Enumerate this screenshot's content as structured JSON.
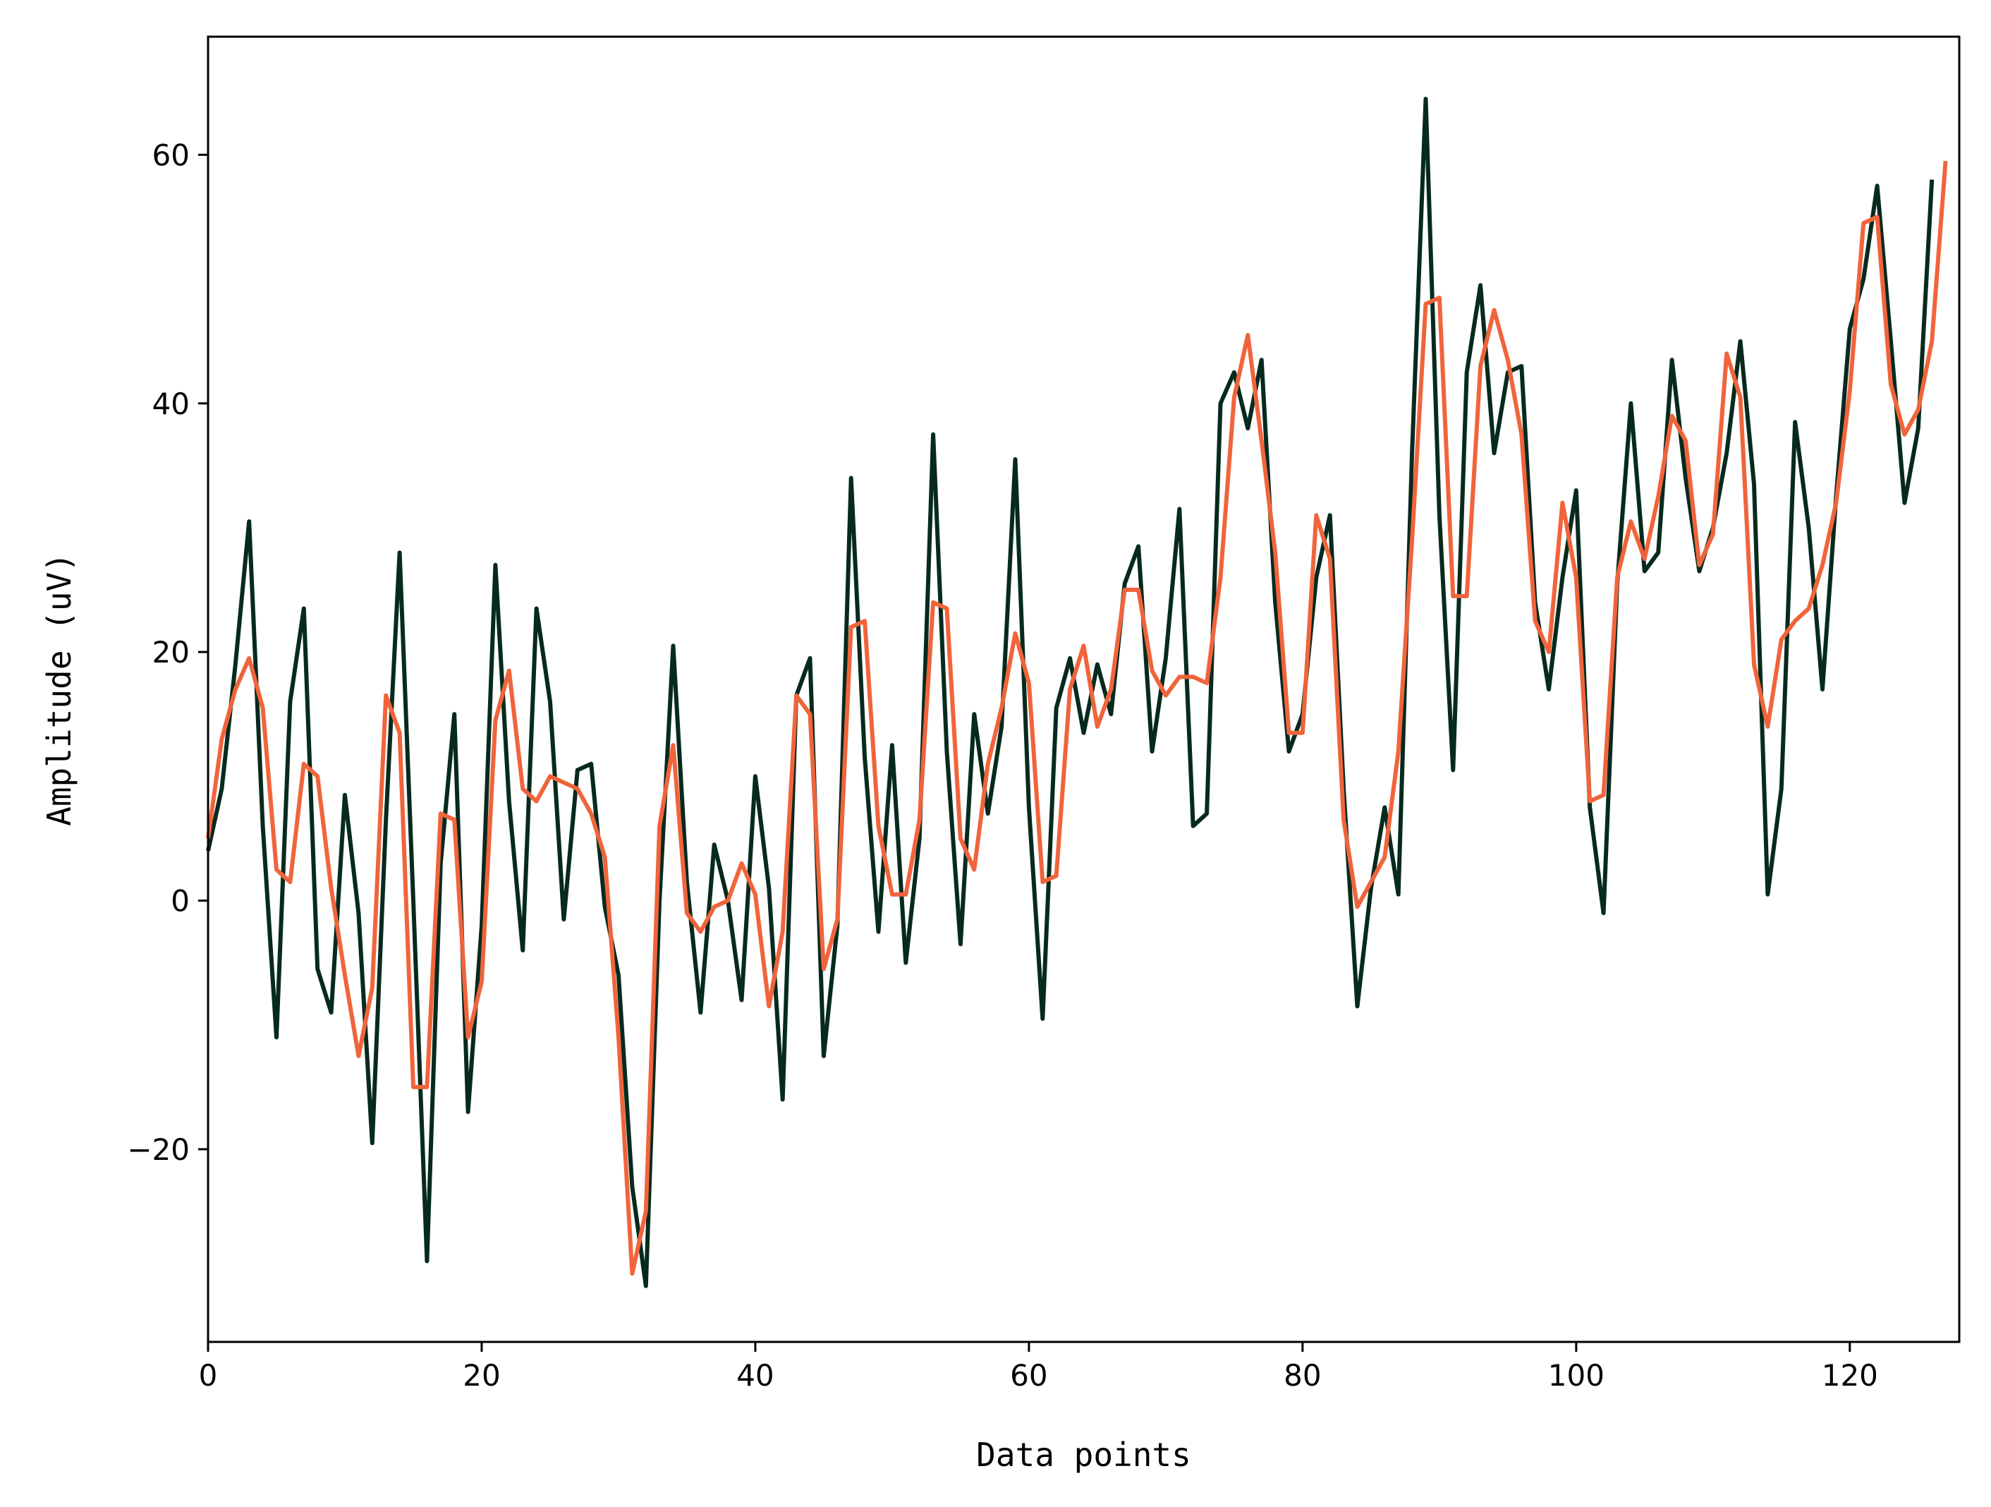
{
  "chart_data": {
    "type": "line",
    "xlabel": "Data points",
    "ylabel": "Amplitude (uV)",
    "xlim": [
      0,
      128
    ],
    "ylim": [
      -35.5,
      69.5
    ],
    "grid": false,
    "x_ticks": [
      0,
      20,
      40,
      60,
      80,
      100,
      120
    ],
    "y_ticks": [
      -20,
      0,
      20,
      40,
      60
    ],
    "x_tick_labels": [
      "0",
      "20",
      "40",
      "60",
      "80",
      "100",
      "120"
    ],
    "y_tick_labels": [
      "−20",
      "0",
      "20",
      "40",
      "60"
    ],
    "colors": [
      "#062a1e",
      "#f0643c"
    ],
    "series": [
      {
        "values": [
          4,
          9,
          19,
          30.5,
          6,
          -11,
          16,
          23.5,
          -5.5,
          -9,
          8.5,
          -1,
          -19.5,
          6.5,
          28,
          0,
          -29,
          3,
          15,
          -17,
          -2,
          27,
          8,
          -4,
          23.5,
          16,
          -1.5,
          10.5,
          11,
          -0.5,
          -6,
          -23,
          -31,
          0,
          20.5,
          1.5,
          -9,
          4.5,
          0,
          -8,
          10,
          1,
          -16,
          16.5,
          19.5,
          -12.5,
          -2,
          34,
          11.5,
          -2.5,
          12.5,
          -5,
          5,
          37.5,
          12,
          -3.5,
          15,
          7,
          14,
          35.5,
          7.5,
          -9.5,
          15.5,
          19.5,
          13.5,
          19,
          15,
          25.5,
          28.5,
          12,
          19.5,
          31.5,
          6,
          7,
          40,
          42.5,
          38,
          43.5,
          24,
          12,
          15,
          26,
          31,
          9,
          -8.5,
          1,
          7.5,
          0.5,
          36,
          64.5,
          31,
          10.5,
          42.5,
          49.5,
          36,
          42.5,
          43,
          24,
          17,
          26,
          33,
          7.5,
          -1,
          25.5,
          40,
          26.5,
          28,
          43.5,
          34,
          26.5,
          30,
          36,
          45,
          33.5,
          0.5,
          9,
          38.5,
          30,
          17,
          32.5,
          46,
          50,
          57.5,
          45,
          32,
          38,
          58
        ]
      },
      {
        "values": [
          5,
          13,
          17,
          19.5,
          15.5,
          2.5,
          1.5,
          11,
          10,
          1,
          -6,
          -12.5,
          -7,
          16.5,
          13.5,
          -15,
          -15,
          7,
          6.5,
          -11,
          -6.5,
          14.5,
          18.5,
          9,
          8,
          10,
          9.5,
          9,
          7,
          3.5,
          -11,
          -30,
          -25,
          6,
          12.5,
          -1,
          -2.5,
          -0.5,
          0,
          3,
          0.5,
          -8.5,
          -2.5,
          16.5,
          15,
          -5.5,
          -1.5,
          22,
          22.5,
          6,
          0.5,
          0.5,
          6.5,
          24,
          23.5,
          5,
          2.5,
          11,
          15.5,
          21.5,
          17.5,
          1.5,
          2,
          17,
          20.5,
          14,
          17,
          25,
          25,
          18.5,
          16.5,
          18,
          18,
          17.5,
          26,
          40.5,
          45.5,
          37,
          28,
          13.5,
          13.5,
          31,
          27.5,
          6.5,
          -0.5,
          1.5,
          3.5,
          12,
          29,
          48,
          48.5,
          24.5,
          24.5,
          43,
          47.5,
          43.5,
          37.5,
          22.5,
          20,
          32,
          26,
          8,
          8.5,
          26,
          30.5,
          27.5,
          32.5,
          39,
          37,
          27,
          29.5,
          44,
          40.5,
          19,
          14,
          21,
          22.5,
          23.5,
          27,
          32,
          41,
          54.5,
          55,
          41.5,
          37.5,
          39.5,
          45,
          59.5
        ]
      }
    ]
  }
}
